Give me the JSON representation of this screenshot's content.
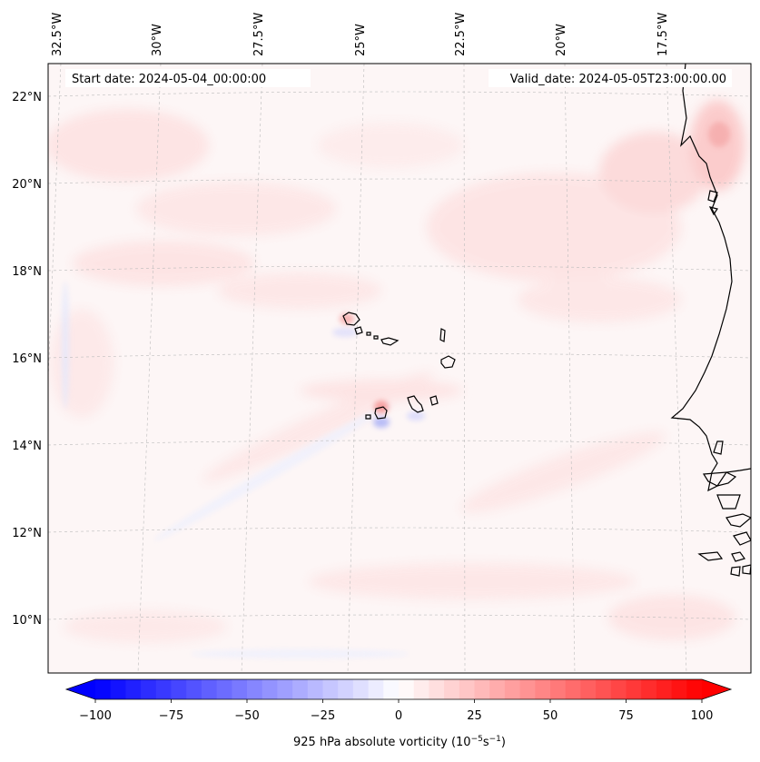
{
  "map": {
    "start_date_text": "Start date: 2024-05-04_00:00:00",
    "valid_date_text": "Valid_date: 2024-05-05T23:00:00.00",
    "lon_labels": [
      "32.5°W",
      "30°W",
      "27.5°W",
      "25°W",
      "22.5°W",
      "20°W",
      "17.5°W"
    ],
    "lat_labels": [
      "22°N",
      "20°N",
      "18°N",
      "16°N",
      "14°N",
      "12°N",
      "10°N"
    ],
    "field": "925 hPa absolute vorticity",
    "units_html": "(10⁻⁵s⁻¹)",
    "coastline_color": "#000000",
    "gridline_color": "#bbbbbb"
  },
  "colorbar": {
    "label_main": "925 hPa absolute vorticity (10",
    "label_exp1": "−5",
    "label_mid": "s",
    "label_exp2": "−1",
    "label_end": ")",
    "min": -100,
    "max": 100,
    "ticks": [
      "−100",
      "−75",
      "−50",
      "−25",
      "0",
      "25",
      "50",
      "75",
      "100"
    ],
    "neg_color": "#0000ff",
    "pos_color": "#ff0000",
    "extend": "both"
  }
}
